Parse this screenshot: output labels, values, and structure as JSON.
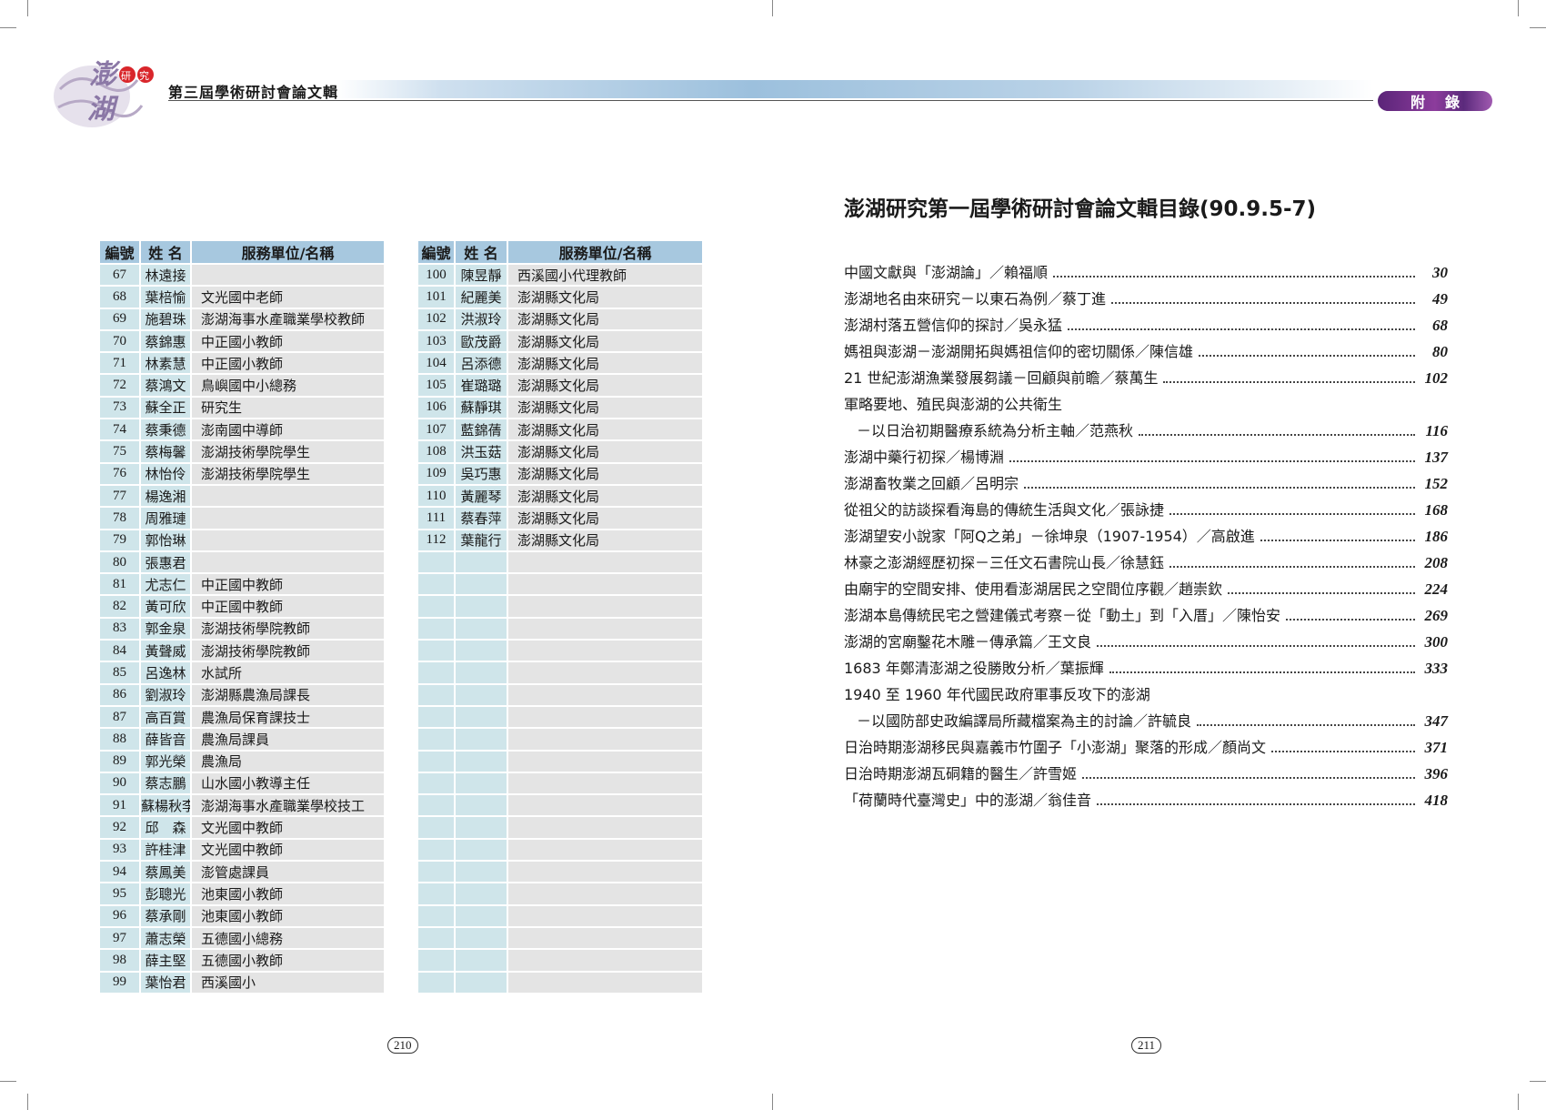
{
  "header": {
    "logo_text": "澎湖研究",
    "title": "第三屆學術研討會論文輯",
    "section_badge": "附錄"
  },
  "columns": {
    "num": "編號",
    "name": "姓 名",
    "unit": "服務單位/名稱"
  },
  "left_table": {
    "rows": [
      [
        "67",
        "林遠接",
        ""
      ],
      [
        "68",
        "葉棓愉",
        "文光國中老師"
      ],
      [
        "69",
        "施碧珠",
        "澎湖海事水產職業學校教師"
      ],
      [
        "70",
        "蔡錦惠",
        "中正國小教師"
      ],
      [
        "71",
        "林素慧",
        "中正國小教師"
      ],
      [
        "72",
        "蔡鴻文",
        "鳥嶼國中小總務"
      ],
      [
        "73",
        "蘇全正",
        "研究生"
      ],
      [
        "74",
        "蔡秉德",
        "澎南國中導師"
      ],
      [
        "75",
        "蔡梅馨",
        "澎湖技術學院學生"
      ],
      [
        "76",
        "林怡伶",
        "澎湖技術學院學生"
      ],
      [
        "77",
        "楊逸湘",
        ""
      ],
      [
        "78",
        "周雅璉",
        ""
      ],
      [
        "79",
        "郭怡琳",
        ""
      ],
      [
        "80",
        "張惠君",
        ""
      ],
      [
        "81",
        "尤志仁",
        "中正國中教師"
      ],
      [
        "82",
        "黃可欣",
        "中正國中教師"
      ],
      [
        "83",
        "郭金泉",
        "澎湖技術學院教師"
      ],
      [
        "84",
        "黃聲威",
        "澎湖技術學院教師"
      ],
      [
        "85",
        "呂逸林",
        "水試所"
      ],
      [
        "86",
        "劉淑玲",
        "澎湖縣農漁局課長"
      ],
      [
        "87",
        "高百賞",
        "農漁局保育課技士"
      ],
      [
        "88",
        "薛皆音",
        "農漁局課員"
      ],
      [
        "89",
        "郭光榮",
        "農漁局"
      ],
      [
        "90",
        "蔡志鵬",
        "山水國小教導主任"
      ],
      [
        "91",
        "蘇楊秋李",
        "澎湖海事水產職業學校技工"
      ],
      [
        "92",
        "邱　森",
        "文光國中教師"
      ],
      [
        "93",
        "許桂津",
        "文光國中教師"
      ],
      [
        "94",
        "蔡鳳美",
        "澎管處課員"
      ],
      [
        "95",
        "彭聰光",
        "池東國小教師"
      ],
      [
        "96",
        "蔡承剛",
        "池東國小教師"
      ],
      [
        "97",
        "蕭志榮",
        "五德國小總務"
      ],
      [
        "98",
        "薛主堅",
        "五德國小教師"
      ],
      [
        "99",
        "葉怡君",
        "西溪國小"
      ]
    ]
  },
  "right_table": {
    "rows": [
      [
        "100",
        "陳昱靜",
        "西溪國小代理教師"
      ],
      [
        "101",
        "紀麗美",
        "澎湖縣文化局"
      ],
      [
        "102",
        "洪淑玲",
        "澎湖縣文化局"
      ],
      [
        "103",
        "歐茂爵",
        "澎湖縣文化局"
      ],
      [
        "104",
        "呂添德",
        "澎湖縣文化局"
      ],
      [
        "105",
        "崔璐璐",
        "澎湖縣文化局"
      ],
      [
        "106",
        "蘇靜琪",
        "澎湖縣文化局"
      ],
      [
        "107",
        "藍錦蒨",
        "澎湖縣文化局"
      ],
      [
        "108",
        "洪玉菇",
        "澎湖縣文化局"
      ],
      [
        "109",
        "吳巧惠",
        "澎湖縣文化局"
      ],
      [
        "110",
        "黃麗琴",
        "澎湖縣文化局"
      ],
      [
        "111",
        "蔡春萍",
        "澎湖縣文化局"
      ],
      [
        "112",
        "葉龍行",
        "澎湖縣文化局"
      ],
      [
        "",
        "",
        ""
      ],
      [
        "",
        "",
        ""
      ],
      [
        "",
        "",
        ""
      ],
      [
        "",
        "",
        ""
      ],
      [
        "",
        "",
        ""
      ],
      [
        "",
        "",
        ""
      ],
      [
        "",
        "",
        ""
      ],
      [
        "",
        "",
        ""
      ],
      [
        "",
        "",
        ""
      ],
      [
        "",
        "",
        ""
      ],
      [
        "",
        "",
        ""
      ],
      [
        "",
        "",
        ""
      ],
      [
        "",
        "",
        ""
      ],
      [
        "",
        "",
        ""
      ],
      [
        "",
        "",
        ""
      ],
      [
        "",
        "",
        ""
      ],
      [
        "",
        "",
        ""
      ],
      [
        "",
        "",
        ""
      ],
      [
        "",
        "",
        ""
      ],
      [
        "",
        "",
        ""
      ]
    ]
  },
  "toc": {
    "title": "澎湖研究第一屆學術研討會論文輯目錄(90.9.5-7)",
    "items": [
      {
        "text": "中國文獻與「澎湖論」／賴福順",
        "page": "30"
      },
      {
        "text": "澎湖地名由來研究－以東石為例／蔡丁進",
        "page": "49"
      },
      {
        "text": "澎湖村落五營信仰的探討／吳永猛",
        "page": "68"
      },
      {
        "text": "媽祖與澎湖－澎湖開拓與媽祖信仰的密切關係／陳信雄",
        "page": "80"
      },
      {
        "text": "21 世紀澎湖漁業發展芻議－回顧與前瞻／蔡萬生",
        "page": "102"
      },
      {
        "text": "軍略要地、殖民與澎湖的公共衛生",
        "page": ""
      },
      {
        "text": "－以日治初期醫療系統為分析主軸／范燕秋",
        "page": "116",
        "indent": true
      },
      {
        "text": "澎湖中藥行初探／楊博淵",
        "page": "137"
      },
      {
        "text": "澎湖畜牧業之回顧／呂明宗",
        "page": "152"
      },
      {
        "text": "從祖父的訪談探看海島的傳統生活與文化／張詠捷",
        "page": "168"
      },
      {
        "text": "澎湖望安小說家「阿Q之弟」－徐坤泉（1907-1954）／高啟進",
        "page": "186"
      },
      {
        "text": "林豪之澎湖經歷初探－三任文石書院山長／徐慧鈺",
        "page": "208"
      },
      {
        "text": "由廟宇的空間安排、使用看澎湖居民之空間位序觀／趙崇欽",
        "page": "224"
      },
      {
        "text": "澎湖本島傳統民宅之營建儀式考察－從「動土」到「入厝」／陳怡安",
        "page": "269"
      },
      {
        "text": "澎湖的宮廟鑿花木雕－傳承篇／王文良",
        "page": "300"
      },
      {
        "text": "1683 年鄭清澎湖之役勝敗分析／葉振輝",
        "page": "333"
      },
      {
        "text": "1940 至 1960 年代國民政府軍事反攻下的澎湖",
        "page": ""
      },
      {
        "text": "－以國防部史政編譯局所藏檔案為主的討論／許毓良",
        "page": "347",
        "indent": true
      },
      {
        "text": "日治時期澎湖移民與嘉義市竹圍子「小澎湖」聚落的形成／顏尚文",
        "page": "371"
      },
      {
        "text": "日治時期澎湖瓦硐籍的醫生／許雪姬",
        "page": "396"
      },
      {
        "text": "「荷蘭時代臺灣史」中的澎湖／翁佳音",
        "page": "418"
      }
    ]
  },
  "page_numbers": {
    "left": "210",
    "right": "211"
  },
  "colors": {
    "header_cell": "#a7c8df",
    "id_cell": "#cfe5ea",
    "unit_cell": "#e4e4e4",
    "badge": "#6a2c86",
    "logo_accent": "#d9262b"
  }
}
